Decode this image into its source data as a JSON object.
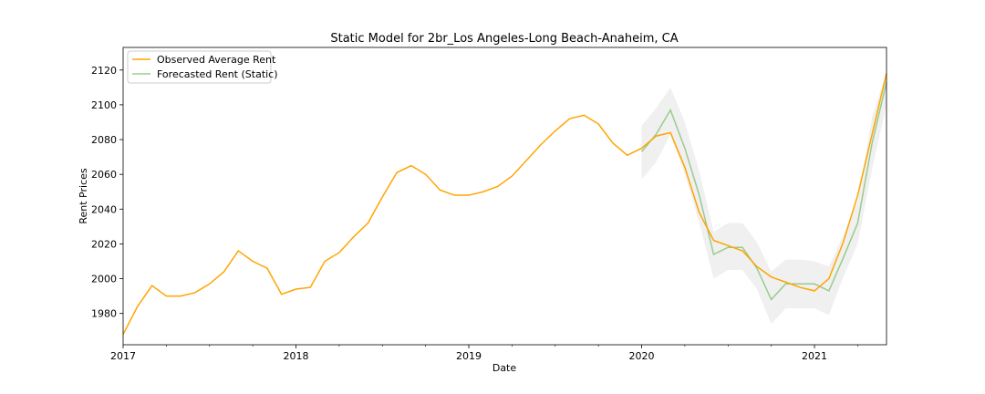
{
  "chart_data": {
    "type": "line",
    "title": "Static Model for 2br_Los Angeles-Long Beach-Anaheim, CA",
    "xlabel": "Date",
    "ylabel": "Rent Prices",
    "x_range": [
      "2017-01",
      "2021-06"
    ],
    "ylim": [
      1962,
      2133
    ],
    "x_ticks": [
      {
        "date": "2017-01",
        "label": "2017"
      },
      {
        "date": "2018-01",
        "label": "2018"
      },
      {
        "date": "2019-01",
        "label": "2019"
      },
      {
        "date": "2020-01",
        "label": "2020"
      },
      {
        "date": "2021-01",
        "label": "2021"
      }
    ],
    "y_ticks": [
      1980,
      2000,
      2020,
      2040,
      2060,
      2080,
      2100,
      2120
    ],
    "grid": false,
    "legend_position": "top-left",
    "series": [
      {
        "name": "Observed Average Rent",
        "color": "#ffa500",
        "x": [
          "2017-01",
          "2017-02",
          "2017-03",
          "2017-04",
          "2017-05",
          "2017-06",
          "2017-07",
          "2017-08",
          "2017-09",
          "2017-10",
          "2017-11",
          "2017-12",
          "2018-01",
          "2018-02",
          "2018-03",
          "2018-04",
          "2018-05",
          "2018-06",
          "2018-07",
          "2018-08",
          "2018-09",
          "2018-10",
          "2018-11",
          "2018-12",
          "2019-01",
          "2019-02",
          "2019-03",
          "2019-04",
          "2019-05",
          "2019-06",
          "2019-07",
          "2019-08",
          "2019-09",
          "2019-10",
          "2019-11",
          "2019-12",
          "2020-01",
          "2020-02",
          "2020-03",
          "2020-04",
          "2020-05",
          "2020-06",
          "2020-07",
          "2020-08",
          "2020-09",
          "2020-10",
          "2020-11",
          "2020-12",
          "2021-01",
          "2021-02",
          "2021-03",
          "2021-04",
          "2021-05",
          "2021-06"
        ],
        "values": [
          1968,
          1984,
          1996,
          1990,
          1990,
          1992,
          1997,
          2004,
          2016,
          2010,
          2006,
          1991,
          1994,
          1995,
          2010,
          2015,
          2024,
          2032,
          2047,
          2061,
          2065,
          2060,
          2051,
          2048,
          2048,
          2050,
          2053,
          2059,
          2068,
          2077,
          2085,
          2092,
          2094,
          2089,
          2078,
          2071,
          2075,
          2082,
          2084,
          2064,
          2038,
          2022,
          2019,
          2016,
          2007,
          2001,
          1998,
          1995,
          1993,
          2000,
          2021,
          2048,
          2083,
          2118
        ]
      },
      {
        "name": "Forecasted Rent (Static)",
        "color": "#7cbf6c",
        "x": [
          "2020-01",
          "2020-02",
          "2020-03",
          "2020-04",
          "2020-05",
          "2020-06",
          "2020-07",
          "2020-08",
          "2020-09",
          "2020-10",
          "2020-11",
          "2020-12",
          "2021-01",
          "2021-02",
          "2021-03",
          "2021-04",
          "2021-05",
          "2021-06"
        ],
        "values": [
          2073,
          2083,
          2097,
          2075,
          2048,
          2014,
          2018,
          2018,
          2006,
          1988,
          1997,
          1997,
          1997,
          1993,
          2012,
          2032,
          2078,
          2113
        ],
        "lower": [
          2057,
          2067,
          2083,
          2060,
          2032,
          2000,
          2005,
          2005,
          1994,
          1974,
          1983,
          1983,
          1983,
          1979,
          2001,
          2020,
          2063,
          2100
        ],
        "upper": [
          2088,
          2098,
          2110,
          2090,
          2062,
          2027,
          2032,
          2032,
          2021,
          2004,
          2011,
          2011,
          2010,
          2007,
          2025,
          2045,
          2093,
          2119
        ]
      }
    ]
  }
}
